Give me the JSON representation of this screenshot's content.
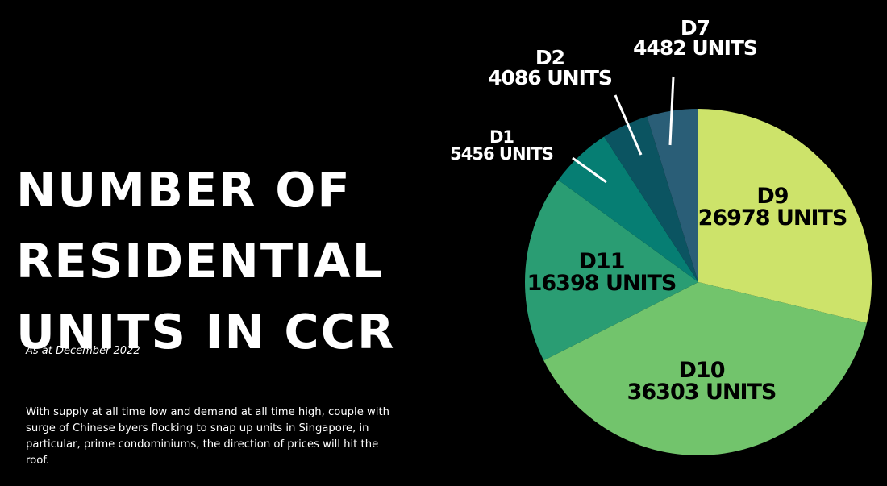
{
  "title_lines": [
    "NUMBER OF",
    "RESIDENTIAL",
    "UNITS IN CCR"
  ],
  "subtitle": "As at December 2022",
  "description": "With supply at all time low and demand at all time high, couple with surge of Chinese byers flocking to snap up units in Singapore, in particular, prime condominiums, the direction of prices will hit the roof.",
  "chart_data": {
    "type": "pie",
    "title": "NUMBER OF RESIDENTIAL UNITS IN CCR",
    "slices": [
      {
        "name": "D9",
        "label": "26978 UNITS",
        "value": 26978,
        "color": "#cde36a"
      },
      {
        "name": "D10",
        "label": "36303 UNITS",
        "value": 36303,
        "color": "#72c46c"
      },
      {
        "name": "D11",
        "label": "16398 UNITS",
        "value": 16398,
        "color": "#2a9d73"
      },
      {
        "name": "D1",
        "label": "5456 UNITS",
        "value": 5456,
        "color": "#067e73"
      },
      {
        "name": "D2",
        "label": "4086 UNITS",
        "value": 4086,
        "color": "#0b5461"
      },
      {
        "name": "D7",
        "label": "4482 UNITS",
        "value": 4482,
        "color": "#2a5e77"
      }
    ]
  }
}
